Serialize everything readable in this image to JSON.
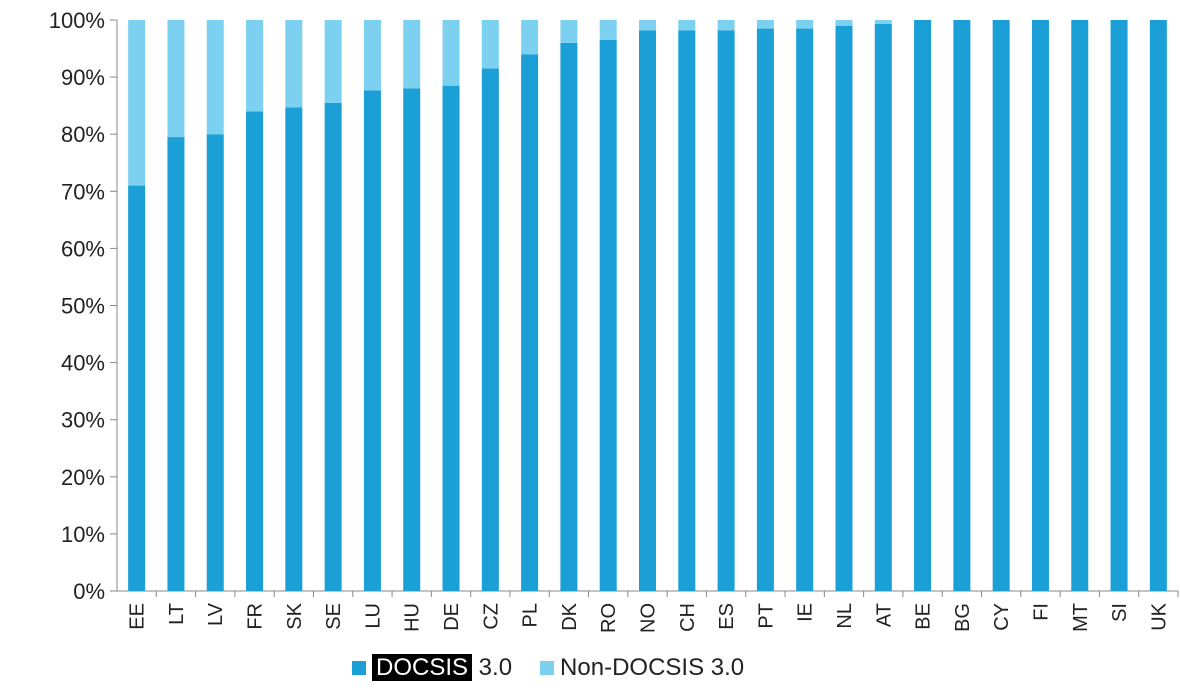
{
  "chart_data": {
    "type": "bar",
    "stacked": true,
    "categories": [
      "EE",
      "LT",
      "LV",
      "FR",
      "SK",
      "SE",
      "LU",
      "HU",
      "DE",
      "CZ",
      "PL",
      "DK",
      "RO",
      "NO",
      "CH",
      "ES",
      "PT",
      "IE",
      "NL",
      "AT",
      "BE",
      "BG",
      "CY",
      "FI",
      "MT",
      "SI",
      "UK"
    ],
    "series": [
      {
        "name": "DOCSIS 3.0",
        "color": "#1a9fd6",
        "values": [
          71,
          79.5,
          80,
          84,
          84.7,
          85.5,
          87.7,
          88,
          88.5,
          91.5,
          94,
          96,
          96.5,
          98.2,
          98.2,
          98.2,
          98.5,
          98.5,
          99,
          99.3,
          100,
          100,
          100,
          100,
          100,
          100,
          100
        ]
      },
      {
        "name": "Non-DOCSIS 3.0",
        "color": "#7dd1f0",
        "values": [
          29,
          20.5,
          20,
          16,
          15.3,
          14.5,
          12.3,
          12,
          11.5,
          8.5,
          6,
          4,
          3.5,
          1.8,
          1.8,
          1.8,
          1.5,
          1.5,
          1,
          0.7,
          0,
          0,
          0,
          0,
          0,
          0,
          0
        ]
      }
    ],
    "y_ticks": [
      "0%",
      "10%",
      "20%",
      "30%",
      "40%",
      "50%",
      "60%",
      "70%",
      "80%",
      "90%",
      "100%"
    ],
    "ylim": [
      0,
      100
    ],
    "grid": false,
    "legend_position": "bottom",
    "legend": {
      "item1_highlight": "DOCSIS",
      "item1_rest": " 3.0",
      "item2": "Non-DOCSIS 3.0"
    }
  }
}
